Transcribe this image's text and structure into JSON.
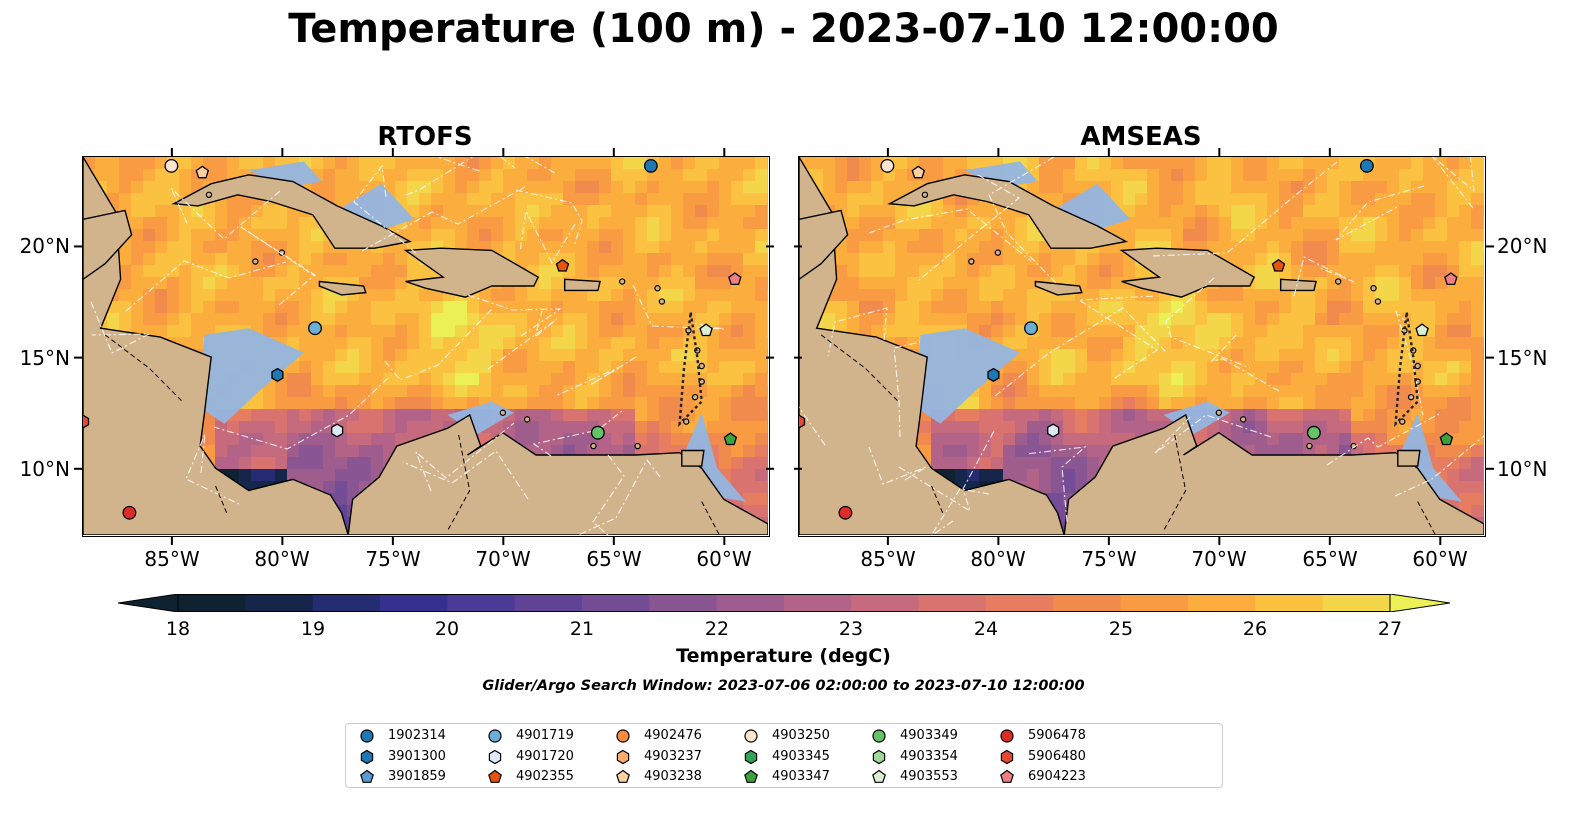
{
  "figure": {
    "title": "Temperature (100 m) - 2023-07-10 12:00:00",
    "colorbar_label": "Temperature (degC)",
    "search_window_note": "Glider/Argo Search Window: 2023-07-06 02:00:00 to 2023-07-10 12:00:00"
  },
  "panels": [
    {
      "title": "RTOFS"
    },
    {
      "title": "AMSEAS"
    }
  ],
  "axes": {
    "lon_labels": [
      "85°W",
      "80°W",
      "75°W",
      "70°W",
      "65°W",
      "60°W"
    ],
    "lat_labels": [
      "20°N",
      "15°N",
      "10°N"
    ],
    "lon_values": [
      -85,
      -80,
      -75,
      -70,
      -65,
      -60
    ],
    "lat_values": [
      20,
      15,
      10
    ],
    "lon_range": [
      -89,
      -58
    ],
    "lat_range": [
      7,
      24
    ]
  },
  "colorbar": {
    "min": 18,
    "max": 27,
    "ticks": [
      "18",
      "19",
      "20",
      "21",
      "22",
      "23",
      "24",
      "25",
      "26",
      "27"
    ],
    "colors": [
      "#0e2231",
      "#16264a",
      "#252c72",
      "#35318f",
      "#4c3a97",
      "#614396",
      "#754c96",
      "#8a5593",
      "#9f5d8e",
      "#b36387",
      "#c66a7d",
      "#d87370",
      "#e77d60",
      "#f18a4d",
      "#f89b42",
      "#fbae3e",
      "#fbc241",
      "#f4d64a",
      "#eaf055"
    ],
    "extend": "both"
  },
  "legend": {
    "items": [
      {
        "label": "1902314",
        "color": "#1f77b4",
        "marker": "circle"
      },
      {
        "label": "3901300",
        "color": "#1f77b4",
        "marker": "hexagon"
      },
      {
        "label": "3901859",
        "color": "#5a9bd5",
        "marker": "pentagon"
      },
      {
        "label": "4901719",
        "color": "#6baed6",
        "marker": "circle"
      },
      {
        "label": "4901720",
        "color": "#deebf7",
        "marker": "hexagon"
      },
      {
        "label": "4902355",
        "color": "#e6550d",
        "marker": "pentagon"
      },
      {
        "label": "4902476",
        "color": "#fd8d3c",
        "marker": "circle"
      },
      {
        "label": "4903237",
        "color": "#fdae6b",
        "marker": "hexagon"
      },
      {
        "label": "4903238",
        "color": "#fdd0a2",
        "marker": "pentagon"
      },
      {
        "label": "4903250",
        "color": "#fde6cf",
        "marker": "circle"
      },
      {
        "label": "4903345",
        "color": "#31a354",
        "marker": "hexagon"
      },
      {
        "label": "4903347",
        "color": "#3ca33c",
        "marker": "pentagon"
      },
      {
        "label": "4903349",
        "color": "#66c266",
        "marker": "circle"
      },
      {
        "label": "4903354",
        "color": "#a1d99b",
        "marker": "hexagon"
      },
      {
        "label": "4903553",
        "color": "#d9f0d3",
        "marker": "pentagon"
      },
      {
        "label": "5906478",
        "color": "#de2d26",
        "marker": "circle"
      },
      {
        "label": "5906480",
        "color": "#e34a33",
        "marker": "hexagon"
      },
      {
        "label": "6904223",
        "color": "#f08080",
        "marker": "pentagon"
      }
    ]
  },
  "platforms": [
    {
      "id": "1902314",
      "lon": -63.3,
      "lat": 23.6
    },
    {
      "id": "4903250",
      "lon": -85.0,
      "lat": 23.6
    },
    {
      "id": "4903238",
      "lon": -83.6,
      "lat": 23.3
    },
    {
      "id": "4902355",
      "lon": -67.3,
      "lat": 19.1
    },
    {
      "id": "6904223",
      "lon": -59.5,
      "lat": 18.5
    },
    {
      "id": "4901719",
      "lon": -78.5,
      "lat": 16.3
    },
    {
      "id": "4903553",
      "lon": -60.8,
      "lat": 16.2
    },
    {
      "id": "3901300",
      "lon": -80.2,
      "lat": 14.2
    },
    {
      "id": "5906480",
      "lon": -89.0,
      "lat": 12.1
    },
    {
      "id": "4901720",
      "lon": -77.5,
      "lat": 11.7
    },
    {
      "id": "4903349",
      "lon": -65.7,
      "lat": 11.6
    },
    {
      "id": "4903347",
      "lon": -59.7,
      "lat": 11.3
    },
    {
      "id": "5906478",
      "lon": -86.9,
      "lat": 8.0
    }
  ]
}
